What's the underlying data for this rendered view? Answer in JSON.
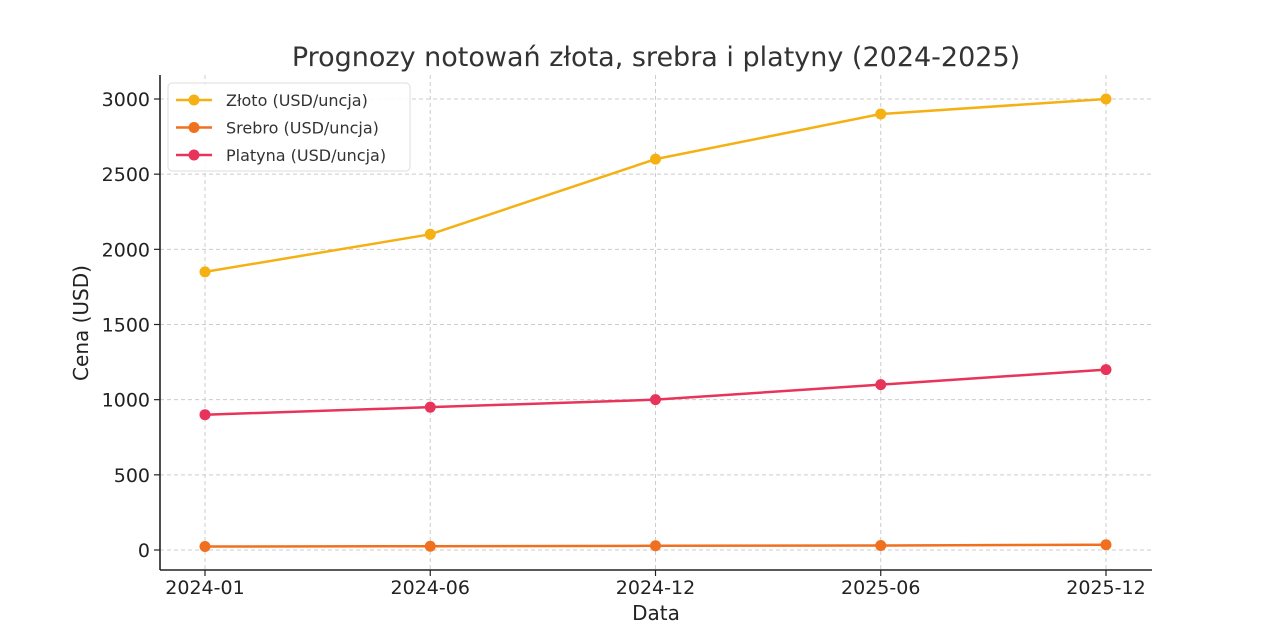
{
  "chart_data": {
    "type": "line",
    "title": "Prognozy notowań złota, srebra i platyny (2024-2025)",
    "xlabel": "Data",
    "ylabel": "Cena (USD)",
    "categories": [
      "2024-01",
      "2024-06",
      "2024-12",
      "2025-06",
      "2025-12"
    ],
    "y_ticks": [
      0,
      500,
      1000,
      1500,
      2000,
      2500,
      3000
    ],
    "y_tick_labels": [
      "0",
      "500",
      "1000",
      "1500",
      "2000",
      "2500",
      "3000"
    ],
    "ylim": [
      -130,
      3150
    ],
    "grid": true,
    "legend_position": "upper left",
    "series": [
      {
        "name": "Złoto (USD/uncja)",
        "color": "#f5b014",
        "values": [
          1850,
          2100,
          2600,
          2900,
          3000
        ]
      },
      {
        "name": "Srebro (USD/uncja)",
        "color": "#f07020",
        "values": [
          23,
          25,
          28,
          30,
          35
        ]
      },
      {
        "name": "Platyna (USD/uncja)",
        "color": "#e8345a",
        "values": [
          900,
          950,
          1000,
          1100,
          1200
        ]
      }
    ]
  }
}
